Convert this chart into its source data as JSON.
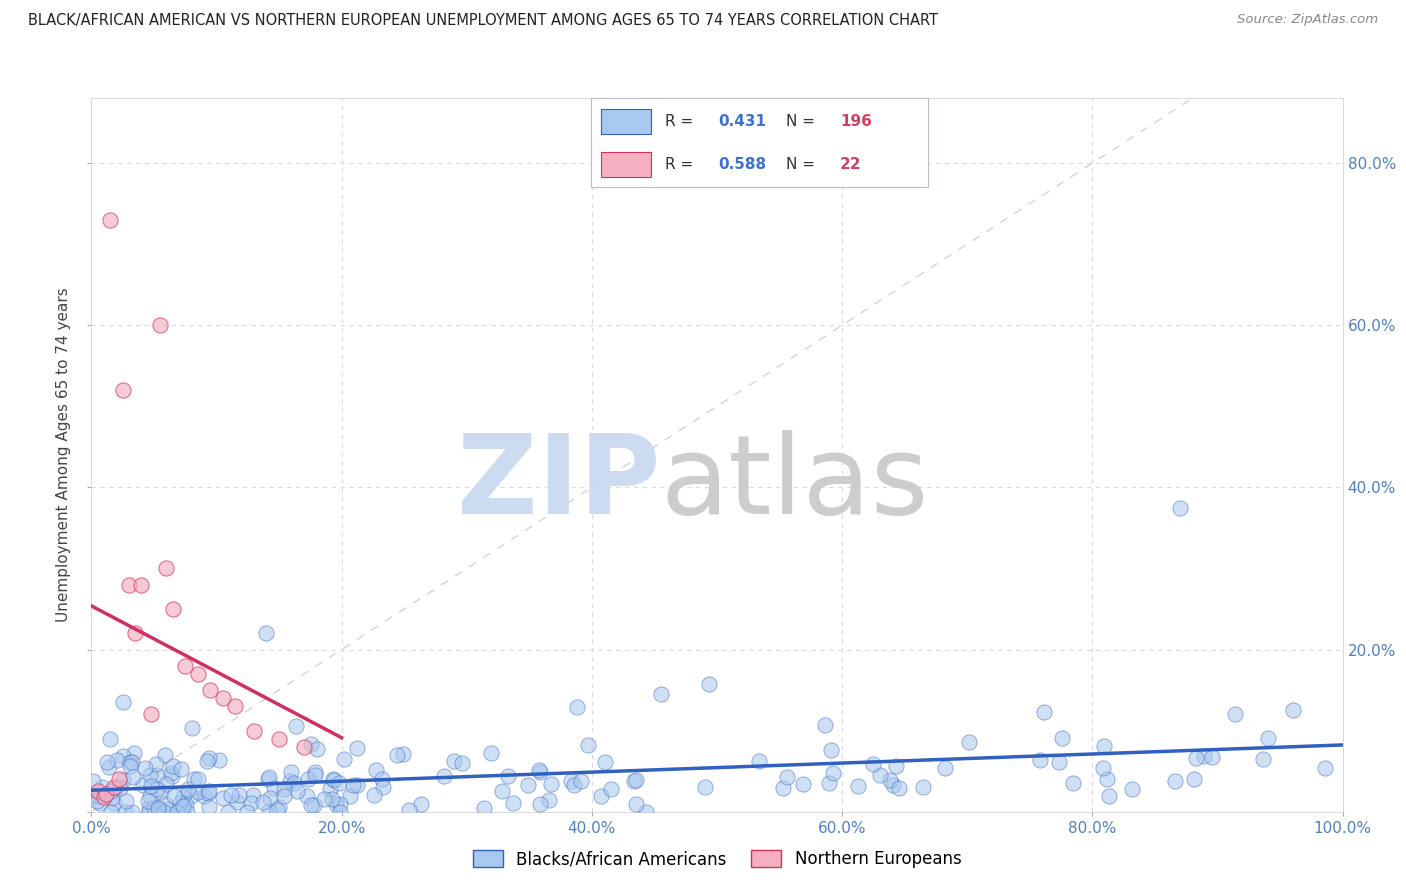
{
  "title": "BLACK/AFRICAN AMERICAN VS NORTHERN EUROPEAN UNEMPLOYMENT AMONG AGES 65 TO 74 YEARS CORRELATION CHART",
  "source": "Source: ZipAtlas.com",
  "ylabel": "Unemployment Among Ages 65 to 74 years",
  "blue_R": 0.431,
  "blue_N": 196,
  "pink_R": 0.588,
  "pink_N": 22,
  "blue_color": "#a8c8ee",
  "pink_color": "#f4b0c0",
  "blue_line_color": "#3060c0",
  "pink_line_color": "#d03060",
  "dashed_line_color": "#c8c8c8",
  "legend_label_blue": "Blacks/African Americans",
  "legend_label_pink": "Northern Europeans",
  "watermark_zip_color": "#c8d8f0",
  "watermark_atlas_color": "#c8c8c8",
  "background_color": "#ffffff",
  "grid_color": "#d8d8e8",
  "title_color": "#222222",
  "axis_label_color": "#444444",
  "tick_color": "#5080c0",
  "legend_R_color": "#4070d0",
  "legend_N_color": "#d04060",
  "xlim": [
    0,
    1.0
  ],
  "ylim": [
    0,
    0.88
  ]
}
